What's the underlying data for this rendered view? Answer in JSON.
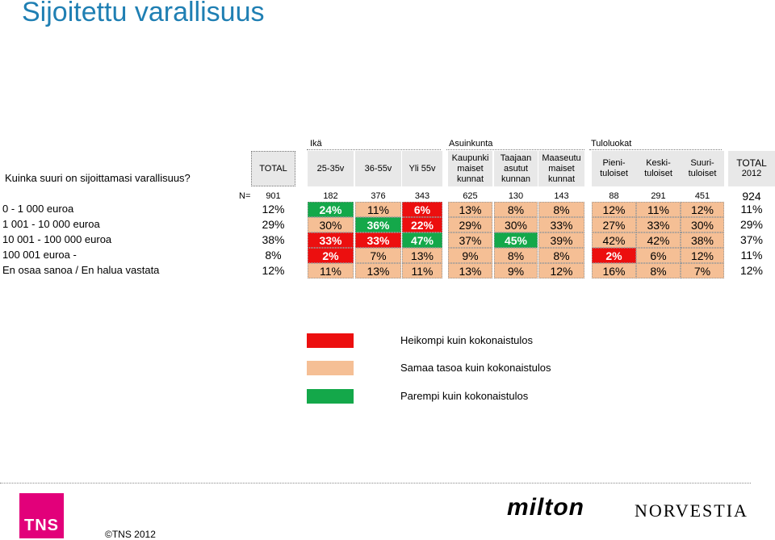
{
  "title": "Sijoitettu varallisuus",
  "question": "Kuinka suuri on sijoittamasi varallisuus?",
  "groups": {
    "age": "Ikä",
    "residence": "Asuinkunta",
    "income": "Tuloluokat"
  },
  "columns": [
    {
      "key": "total",
      "label": "TOTAL"
    },
    {
      "key": "a1",
      "label": "25-35v"
    },
    {
      "key": "a2",
      "label": "36-55v"
    },
    {
      "key": "a3",
      "label": "Yli 55v"
    },
    {
      "key": "r1",
      "label": "Kaupunki maiset kunnat"
    },
    {
      "key": "r2",
      "label": "Taajaan asutut kunnan"
    },
    {
      "key": "r3",
      "label": "Maaseutu maiset kunnat"
    },
    {
      "key": "i1",
      "label": "Pieni- tuloiset"
    },
    {
      "key": "i2",
      "label": "Keski- tuloiset"
    },
    {
      "key": "i3",
      "label": "Suuri- tuloiset"
    }
  ],
  "total2012": {
    "label": "TOTAL",
    "year": "2012"
  },
  "n_label": "N=",
  "n_values": [
    "901",
    "182",
    "376",
    "343",
    "625",
    "130",
    "143",
    "88",
    "291",
    "451"
  ],
  "n_total2012": "924",
  "rows": [
    {
      "label": "0 - 1 000 euroa",
      "values": [
        "12%",
        "24%",
        "11%",
        "6%",
        "13%",
        "8%",
        "8%",
        "12%",
        "11%",
        "12%"
      ],
      "colors": [
        "white",
        "green",
        "peach",
        "red",
        "peach",
        "peach",
        "peach",
        "peach",
        "peach",
        "peach"
      ],
      "total2012": "11%"
    },
    {
      "label": "1 001 - 10 000 euroa",
      "values": [
        "29%",
        "30%",
        "36%",
        "22%",
        "29%",
        "30%",
        "33%",
        "27%",
        "33%",
        "30%"
      ],
      "colors": [
        "white",
        "peach",
        "green",
        "red",
        "peach",
        "peach",
        "peach",
        "peach",
        "peach",
        "peach"
      ],
      "total2012": "29%"
    },
    {
      "label": "10 001 - 100 000 euroa",
      "values": [
        "38%",
        "33%",
        "33%",
        "47%",
        "37%",
        "45%",
        "39%",
        "42%",
        "42%",
        "38%"
      ],
      "colors": [
        "white",
        "red",
        "red",
        "green",
        "peach",
        "green",
        "peach",
        "peach",
        "peach",
        "peach"
      ],
      "total2012": "37%"
    },
    {
      "label": "100 001 euroa -",
      "values": [
        "8%",
        "2%",
        "7%",
        "13%",
        "9%",
        "8%",
        "8%",
        "2%",
        "6%",
        "12%"
      ],
      "colors": [
        "white",
        "red",
        "peach",
        "peach",
        "peach",
        "peach",
        "peach",
        "red",
        "peach",
        "peach"
      ],
      "total2012": "11%"
    },
    {
      "label": "En osaa sanoa / En halua vastata",
      "values": [
        "12%",
        "11%",
        "13%",
        "11%",
        "13%",
        "9%",
        "12%",
        "16%",
        "8%",
        "7%"
      ],
      "colors": [
        "white",
        "peach",
        "peach",
        "peach",
        "peach",
        "peach",
        "peach",
        "peach",
        "peach",
        "peach"
      ],
      "total2012": "12%"
    }
  ],
  "legend": [
    {
      "color": "red",
      "label": "Heikompi kuin kokonaistulos"
    },
    {
      "color": "peach",
      "label": "Samaa tasoa kuin kokonaistulos"
    },
    {
      "color": "green",
      "label": "Parempi kuin kokonaistulos"
    }
  ],
  "colors": {
    "red": "#ec0f0f",
    "peach": "#f5bf95",
    "green": "#14a84a",
    "title": "#1f7fb3",
    "tns": "#e2007a"
  },
  "footer": {
    "tns": "TNS",
    "copyright": "©TNS 2012",
    "milton": "milton",
    "norvestia": "NORVESTIA"
  }
}
